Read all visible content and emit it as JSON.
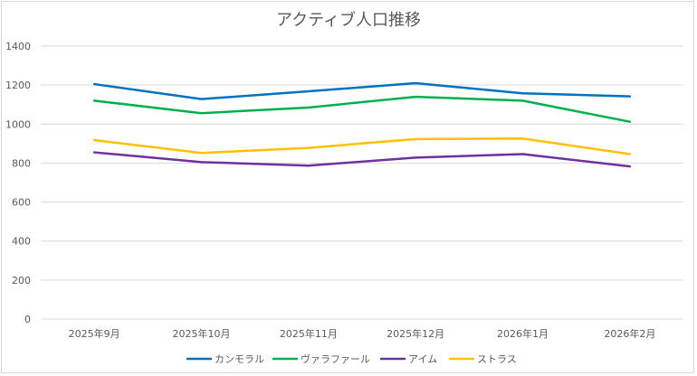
{
  "chart_data": {
    "type": "line",
    "title": "アクティブ人口推移",
    "xlabel": "",
    "ylabel": "",
    "ylim": [
      0,
      1400
    ],
    "ytick_step": 200,
    "yticks": [
      "0",
      "200",
      "400",
      "600",
      "800",
      "1000",
      "1200",
      "1400"
    ],
    "grid": true,
    "legend_position": "bottom",
    "categories": [
      "2025年9月",
      "2025年10月",
      "2025年11月",
      "2025年12月",
      "2026年1月",
      "2026年2月"
    ],
    "series": [
      {
        "name": "カンモラル",
        "color": "#0070c0",
        "values": [
          1205,
          1128,
          1168,
          1210,
          1158,
          1142
        ]
      },
      {
        "name": "ヴァラファール",
        "color": "#00b050",
        "values": [
          1120,
          1056,
          1085,
          1140,
          1120,
          1012
        ]
      },
      {
        "name": "アイム",
        "color": "#7030a0",
        "values": [
          855,
          805,
          787,
          828,
          846,
          783
        ]
      },
      {
        "name": "ストラス",
        "color": "#ffc000",
        "values": [
          918,
          852,
          878,
          923,
          926,
          846
        ]
      }
    ]
  }
}
